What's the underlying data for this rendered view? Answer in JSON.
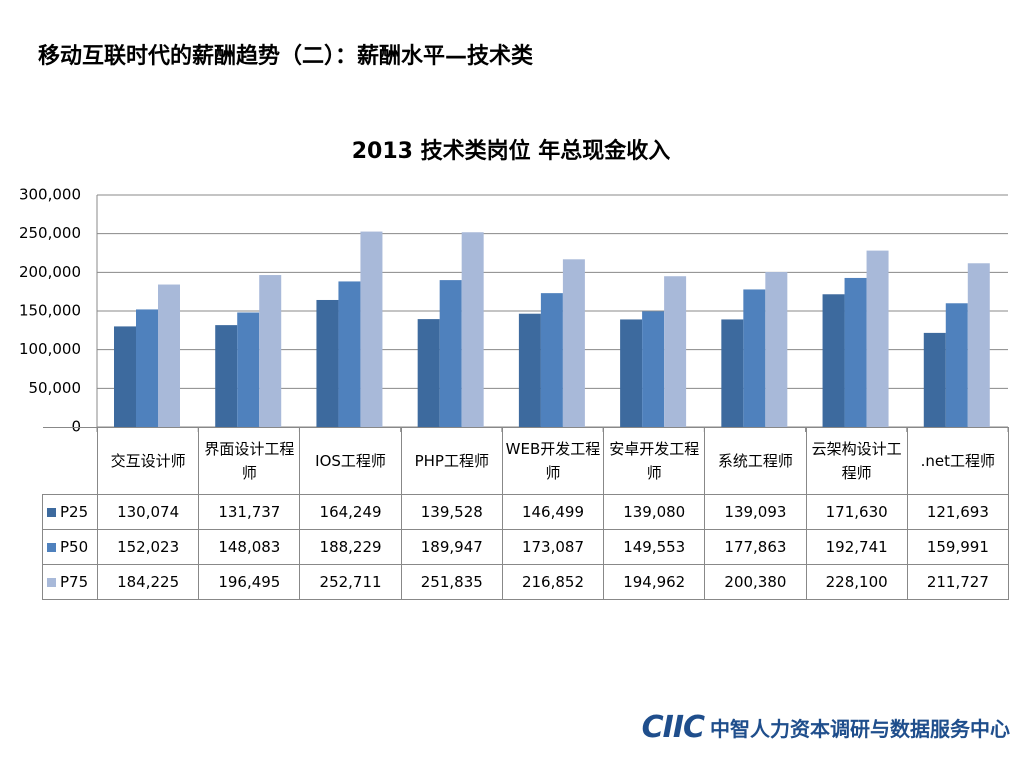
{
  "slide_title": "移动互联时代的薪酬趋势（二）：薪酬水平—技术类",
  "footer": {
    "brand": "CIIC",
    "org": "中智人力资本调研与数据服务中心"
  },
  "chart_data": {
    "type": "bar",
    "title": "2013 技术类岗位 年总现金收入",
    "categories": [
      "交互设计师",
      "界面设计工程师",
      "IOS工程师",
      "PHP工程师",
      "WEB开发工程师",
      "安卓开发工程师",
      "系统工程师",
      "云架构设计工程师",
      ".net工程师"
    ],
    "series": [
      {
        "name": "P25",
        "color": "#3d6a9e",
        "values": [
          130074,
          131737,
          164249,
          139528,
          146499,
          139080,
          139093,
          171630,
          121693
        ],
        "value_labels": [
          "130,074",
          "131,737",
          "164,249",
          "139,528",
          "146,499",
          "139,080",
          "139,093",
          "171,630",
          "121,693"
        ]
      },
      {
        "name": "P50",
        "color": "#4f81bd",
        "values": [
          152023,
          148083,
          188229,
          189947,
          173087,
          149553,
          177863,
          192741,
          159991
        ],
        "value_labels": [
          "152,023",
          "148,083",
          "188,229",
          "189,947",
          "173,087",
          "149,553",
          "177,863",
          "192,741",
          "159,991"
        ]
      },
      {
        "name": "P75",
        "color": "#a8b9d9",
        "values": [
          184225,
          196495,
          252711,
          251835,
          216852,
          194962,
          200380,
          228100,
          211727
        ],
        "value_labels": [
          "184,225",
          "196,495",
          "252,711",
          "251,835",
          "216,852",
          "194,962",
          "200,380",
          "228,100",
          "211,727"
        ]
      }
    ],
    "ylim": [
      0,
      300000
    ],
    "yticks": [
      0,
      {
        "value": 50000,
        "label": "50,000"
      },
      {
        "value": 100000,
        "label": "100,000"
      },
      {
        "value": 150000,
        "label": "150,000"
      },
      {
        "value": 200000,
        "label": "200,000"
      },
      {
        "value": 250000,
        "label": "250,000"
      },
      {
        "value": 300000,
        "label": "300,000"
      }
    ],
    "grid": true
  }
}
